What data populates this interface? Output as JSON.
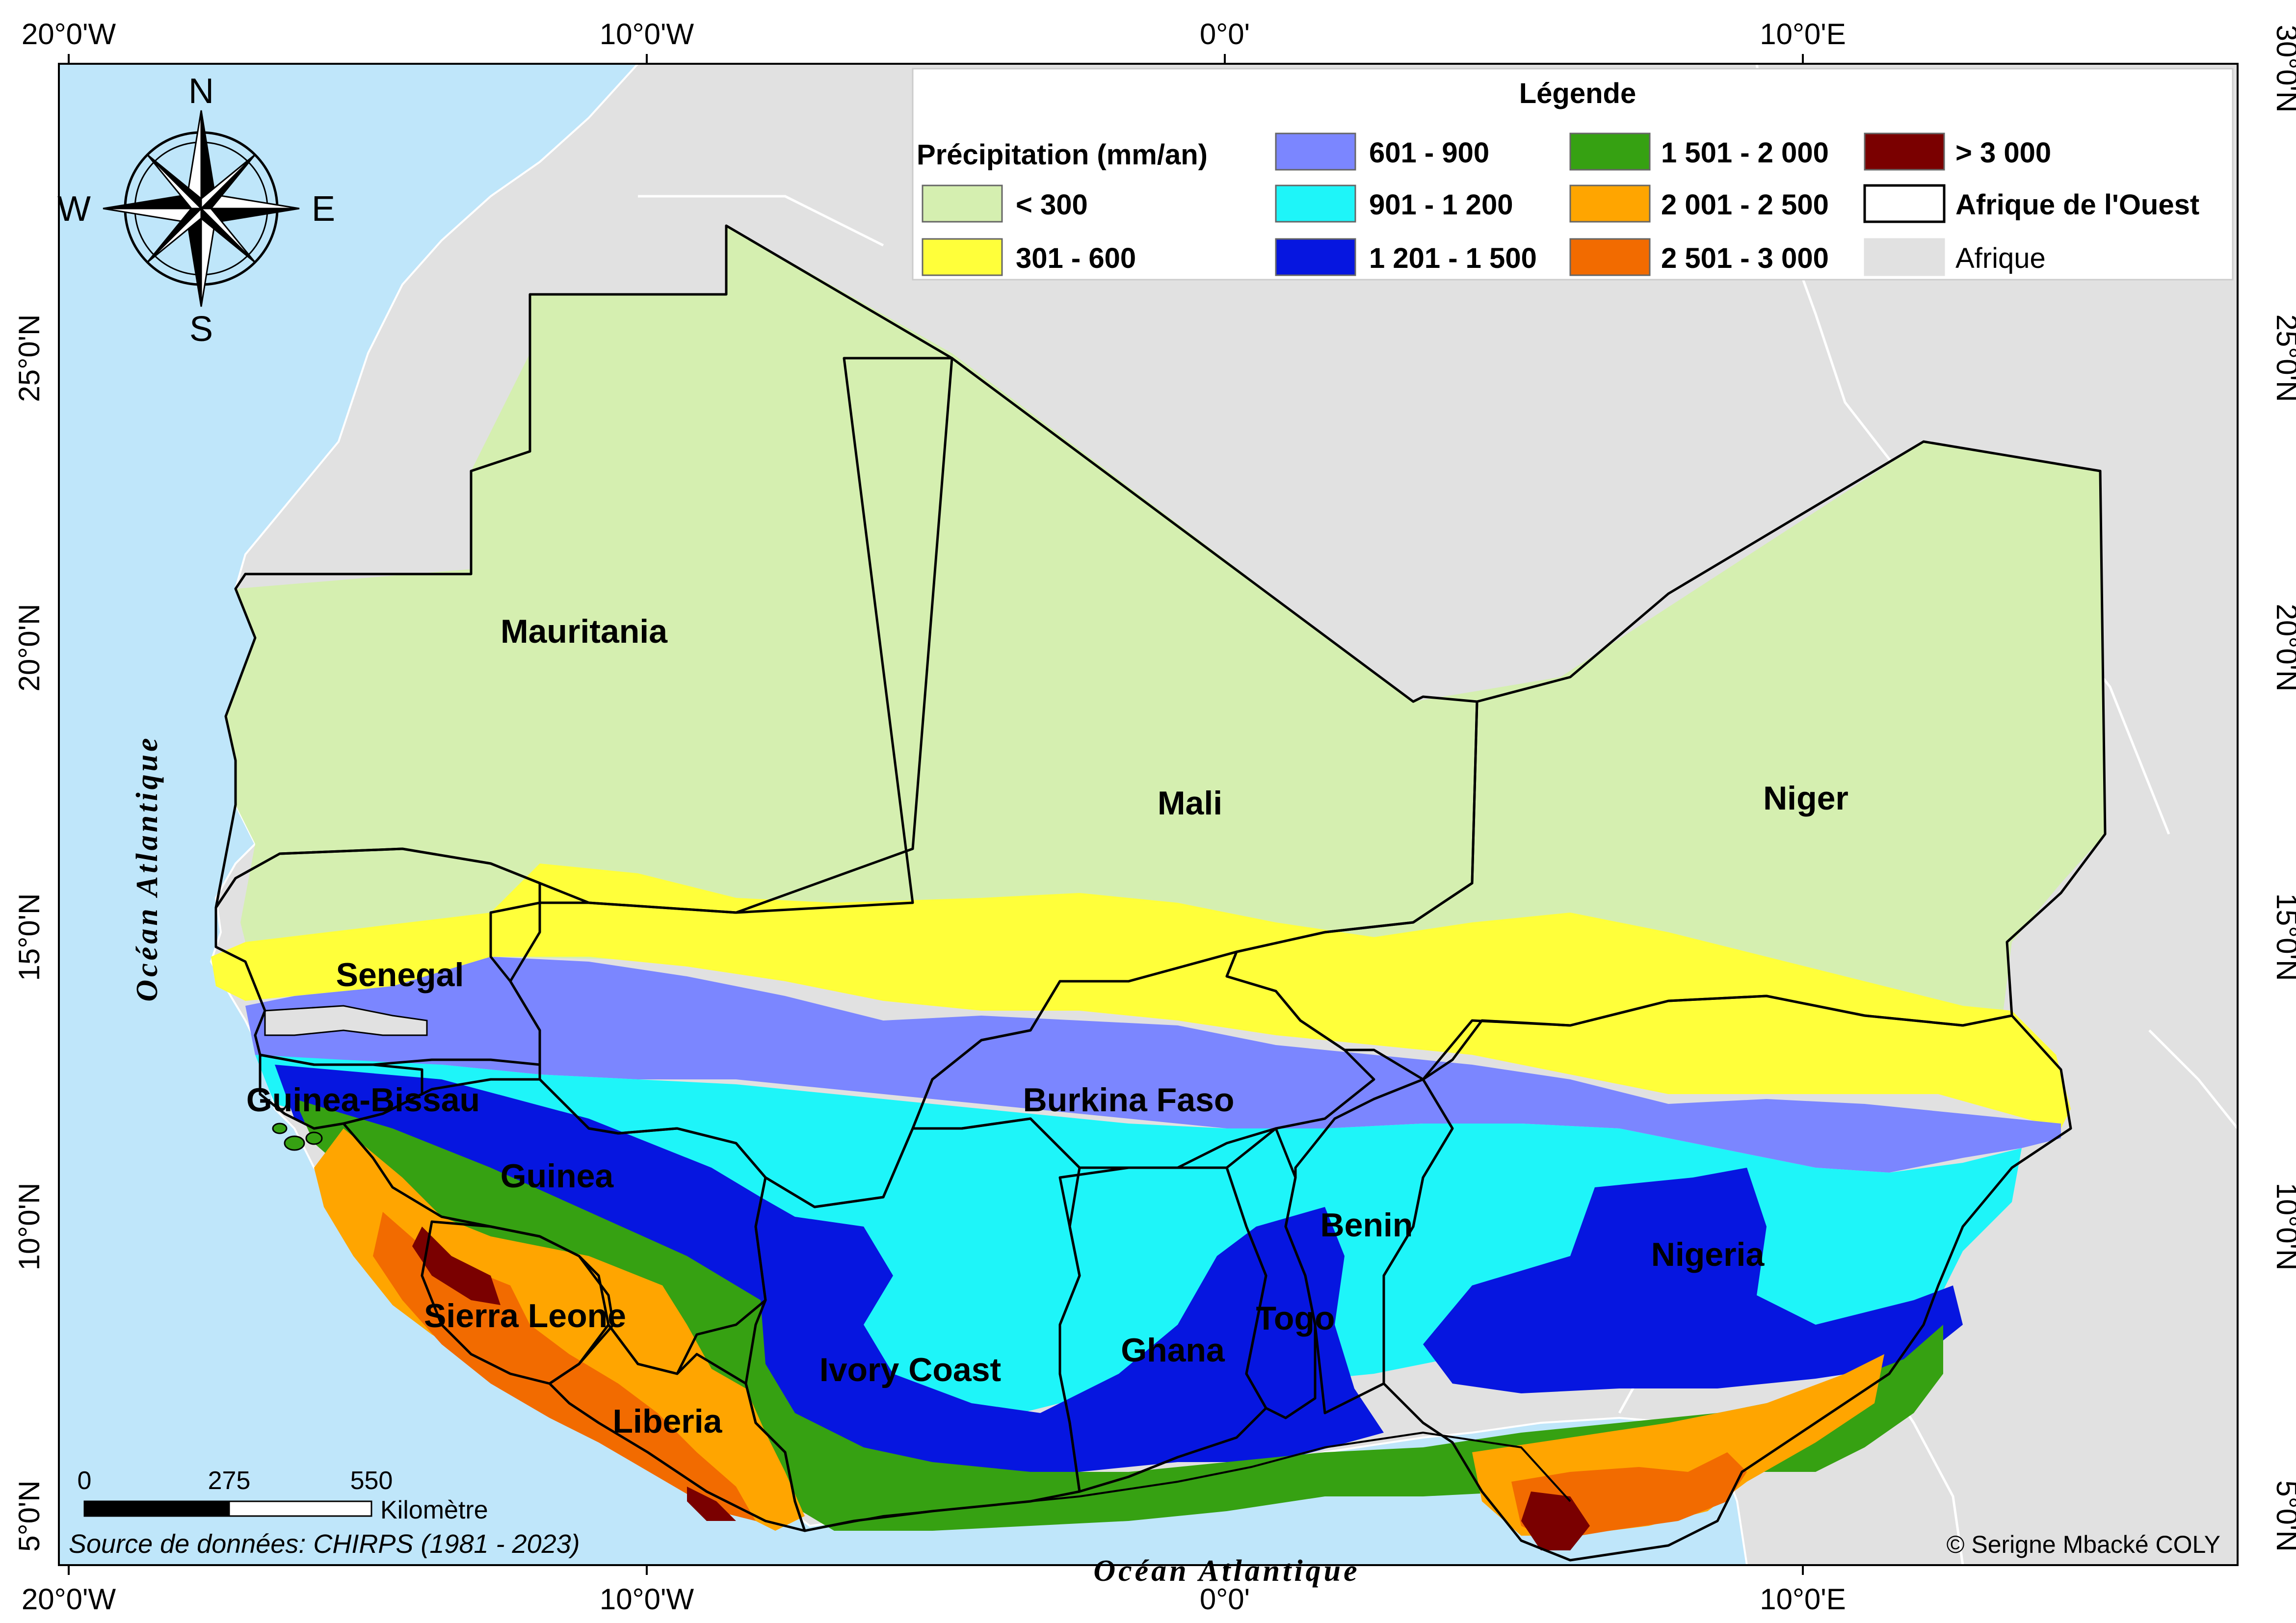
{
  "graticule": {
    "lon_labels": [
      "20°0'W",
      "10°0'W",
      "0°0'",
      "10°0'E"
    ],
    "lat_labels_left": [
      "25°0'N",
      "20°0'N",
      "15°0'N",
      "10°0'N",
      "5°0'N"
    ],
    "lat_labels_right": [
      "30°0'N",
      "25°0'N",
      "20°0'N",
      "15°0'N",
      "10°0'N",
      "5°0'N"
    ]
  },
  "compass": {
    "north": "N",
    "south": "S",
    "east": "E",
    "west": "W"
  },
  "countries": {
    "mauritania": "Mauritania",
    "mali": "Mali",
    "niger": "Niger",
    "senegal": "Senegal",
    "guinea_bissau": "Guinea-Bissau",
    "guinea": "Guinea",
    "sierra_leone": "Sierra Leone",
    "liberia": "Liberia",
    "ivory_coast": "Ivory Coast",
    "burkina_faso": "Burkina Faso",
    "ghana": "Ghana",
    "togo": "Togo",
    "benin": "Benin",
    "nigeria": "Nigeria"
  },
  "ocean_labels": {
    "west": "Océan Atlantique",
    "south": "Océan Atlantique"
  },
  "legend": {
    "title": "Légende",
    "heading": "Précipitation (mm/an)",
    "classes": [
      {
        "label": "< 300",
        "color": "#d5efb0"
      },
      {
        "label": "301 - 600",
        "color": "#ffff3a"
      },
      {
        "label": "601 - 900",
        "color": "#7b86ff"
      },
      {
        "label": "901 - 1 200",
        "color": "#1ef5f9"
      },
      {
        "label": "1 201 - 1 500",
        "color": "#0616e0"
      },
      {
        "label": "1 501 - 2 000",
        "color": "#36a112"
      },
      {
        "label": "2 001 - 2 500",
        "color": "#ffa500"
      },
      {
        "label": "2 501 - 3 000",
        "color": "#f26b00"
      },
      {
        "label": "> 3 000",
        "color": "#7a0000"
      }
    ],
    "west_africa": {
      "label": "Afrique de l'Ouest",
      "color": "#ffffff"
    },
    "africa": {
      "label": "Afrique",
      "color": "#e1e1e1"
    }
  },
  "scale_bar": {
    "ticks": [
      "0",
      "275",
      "550"
    ],
    "unit": "Kilomètre"
  },
  "source": "Source de données: CHIRPS (1981 - 2023)",
  "credit": "© Serigne Mbacké COLY",
  "colors": {
    "ocean": "#bfe6fa",
    "land": "#e1e1e1",
    "border": "#000000"
  }
}
